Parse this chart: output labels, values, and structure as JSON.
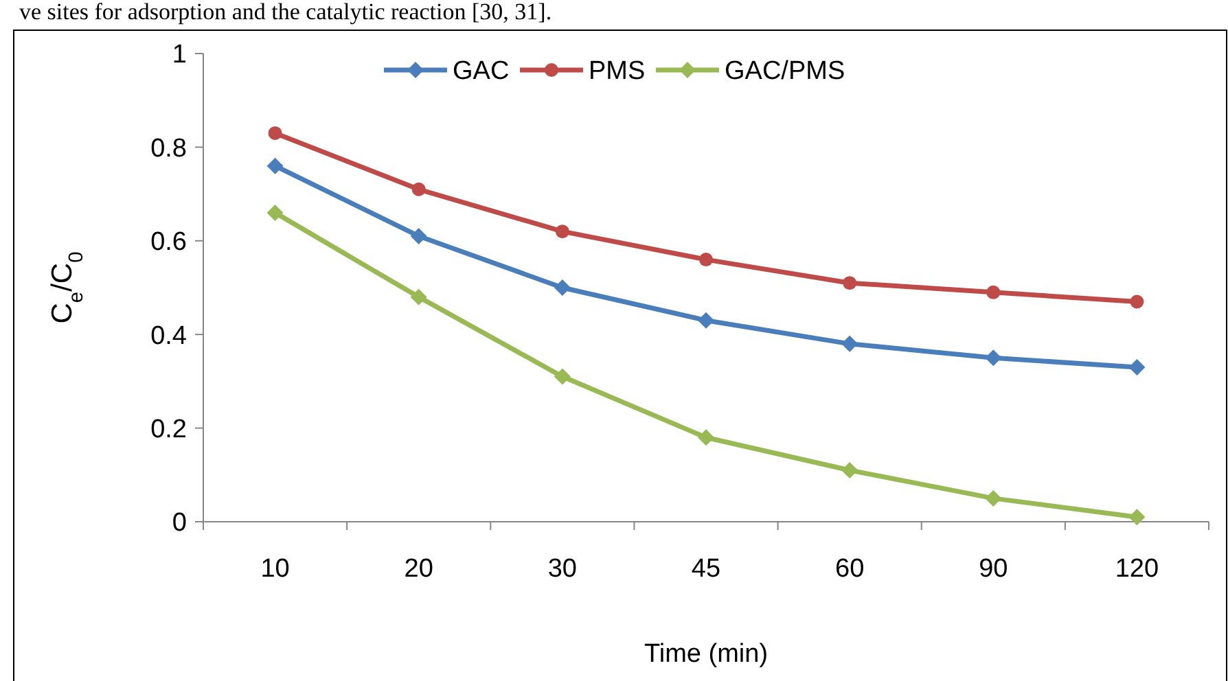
{
  "chart_data": {
    "type": "line",
    "ylabel": "C$_{e}$/C$_{0}$",
    "xlabel": "Time (min)",
    "annotations": [
      "ve sites for adsorption and the catalytic reaction [30, 31]."
    ],
    "categories": [
      "10",
      "20",
      "30",
      "45",
      "60",
      "90",
      "120"
    ],
    "series": [
      {
        "name": "GAC",
        "color": "#4a7ebb",
        "marker": "diamond",
        "values": [
          0.76,
          0.61,
          0.5,
          0.43,
          0.38,
          0.35,
          0.33
        ]
      },
      {
        "name": "PMS",
        "color": "#be4b48",
        "marker": "circle",
        "values": [
          0.83,
          0.71,
          0.62,
          0.56,
          0.51,
          0.49,
          0.47
        ]
      },
      {
        "name": "GAC/PMS",
        "color": "#98b954",
        "marker": "diamond",
        "values": [
          0.66,
          0.48,
          0.31,
          0.18,
          0.11,
          0.05,
          0.01
        ]
      }
    ],
    "ylim": [
      0,
      1
    ],
    "yticks": [
      0,
      0.2,
      0.4,
      0.6,
      0.8,
      1
    ],
    "grid": false,
    "legend": "top",
    "line_style": "solid"
  }
}
